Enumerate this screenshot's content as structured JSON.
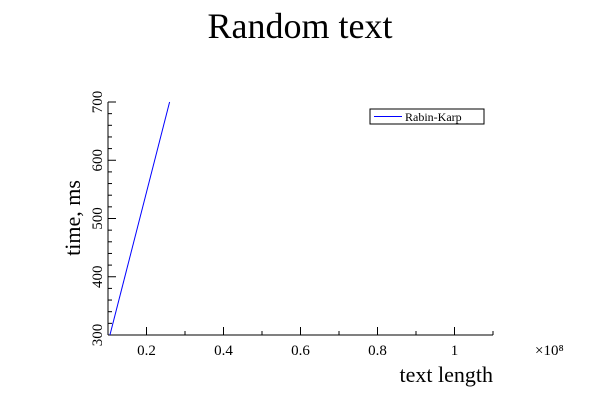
{
  "chart_data": {
    "type": "line",
    "title": "Random text",
    "xlabel": "text length",
    "ylabel": "time, ms",
    "x_multiplier_label": "×10⁸",
    "x_scale_exponent": 8,
    "xlim": [
      0.1,
      1.1
    ],
    "ylim": [
      300,
      700
    ],
    "x_ticks": [
      0.2,
      0.4,
      0.6,
      0.8,
      1
    ],
    "x_tick_labels": [
      "0.2",
      "0.4",
      "0.6",
      "0.8",
      "1"
    ],
    "y_ticks": [
      300,
      400,
      500,
      600,
      700
    ],
    "y_tick_labels": [
      "300",
      "400",
      "500",
      "600",
      "700"
    ],
    "grid": false,
    "legend_position": "top-right",
    "series": [
      {
        "name": "Rabin-Karp",
        "color": "#0000ff",
        "x": [
          0.105,
          0.26
        ],
        "y": [
          300,
          700
        ]
      }
    ]
  }
}
